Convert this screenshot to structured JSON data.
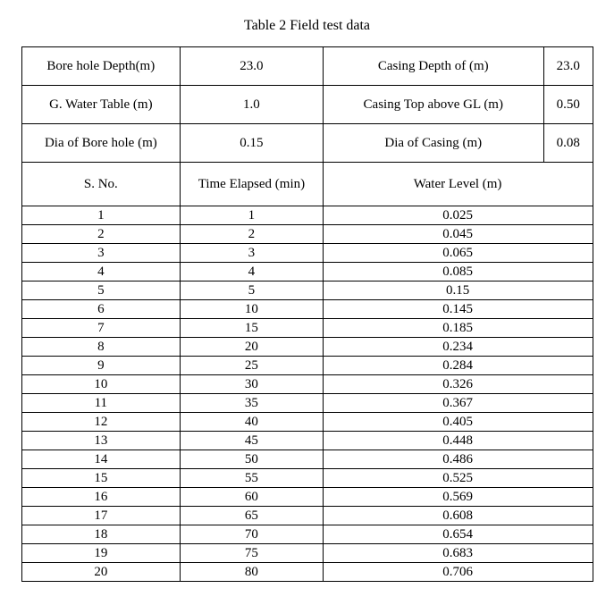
{
  "title": "Table 2 Field test data",
  "meta": [
    {
      "label1": "Bore hole Depth(m)",
      "val1": "23.0",
      "label2": "Casing Depth of (m)",
      "val2": "23.0"
    },
    {
      "label1": "G. Water Table (m)",
      "val1": "1.0",
      "label2": "Casing Top above GL (m)",
      "val2": "0.50"
    },
    {
      "label1": "Dia of Bore hole (m)",
      "val1": "0.15",
      "label2": "Dia of Casing (m)",
      "val2": "0.08"
    }
  ],
  "headers": {
    "sno": "S. No.",
    "time": "Time Elapsed (min)",
    "level": "Water Level (m)"
  },
  "rows": [
    {
      "s": "1",
      "t": "1",
      "l": "0.025"
    },
    {
      "s": "2",
      "t": "2",
      "l": "0.045"
    },
    {
      "s": "3",
      "t": "3",
      "l": "0.065"
    },
    {
      "s": "4",
      "t": "4",
      "l": "0.085"
    },
    {
      "s": "5",
      "t": "5",
      "l": "0.15"
    },
    {
      "s": "6",
      "t": "10",
      "l": "0.145"
    },
    {
      "s": "7",
      "t": "15",
      "l": "0.185"
    },
    {
      "s": "8",
      "t": "20",
      "l": "0.234"
    },
    {
      "s": "9",
      "t": "25",
      "l": "0.284"
    },
    {
      "s": "10",
      "t": "30",
      "l": "0.326"
    },
    {
      "s": "11",
      "t": "35",
      "l": "0.367"
    },
    {
      "s": "12",
      "t": "40",
      "l": "0.405"
    },
    {
      "s": "13",
      "t": "45",
      "l": "0.448"
    },
    {
      "s": "14",
      "t": "50",
      "l": "0.486"
    },
    {
      "s": "15",
      "t": "55",
      "l": "0.525"
    },
    {
      "s": "16",
      "t": "60",
      "l": "0.569"
    },
    {
      "s": "17",
      "t": "65",
      "l": "0.608"
    },
    {
      "s": "18",
      "t": "70",
      "l": "0.654"
    },
    {
      "s": "19",
      "t": "75",
      "l": "0.683"
    },
    {
      "s": "20",
      "t": "80",
      "l": "0.706"
    }
  ]
}
